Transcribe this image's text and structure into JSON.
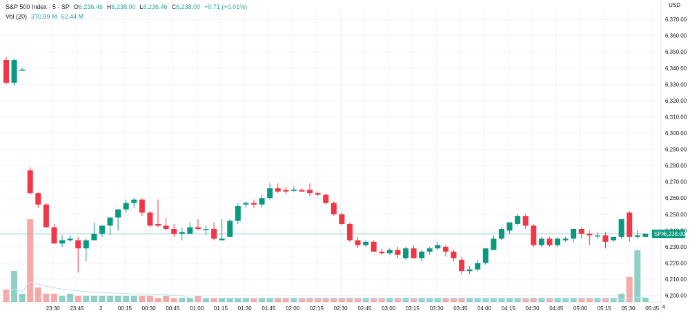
{
  "header": {
    "symbol": "S&P 500 Index · 5 · SP",
    "open_label": "O",
    "open": "6,236.46",
    "high_label": "H",
    "high": "6,238.00",
    "low_label": "L",
    "low": "6,236.46",
    "close_label": "C",
    "close": "6,238.00",
    "change": "+0.71 (+0.01%)",
    "vol_label": "Vol (20)",
    "vol_value": "370.89",
    "vol_unit": "M",
    "vol_ma": "62.44",
    "vol_ma_unit": "M"
  },
  "axis": {
    "currency": "USD",
    "last_price_symbol": "SPX",
    "last_price": "6,238.00",
    "bottom_right_digit": "4"
  },
  "colors": {
    "up": "#089981",
    "down": "#f23645",
    "vol_up": "#8ed0c7",
    "vol_down": "#f7a9a7",
    "grid": "#f0f3fa",
    "ma": "#b7dff0"
  },
  "chart_data": {
    "type": "candlestick",
    "y_ticks": [
      "6,200.00",
      "6,210.00",
      "6,220.00",
      "6,230.00",
      "6,240.00",
      "6,250.00",
      "6,260.00",
      "6,270.00",
      "6,280.00",
      "6,290.00",
      "6,300.00",
      "6,310.00",
      "6,320.00",
      "6,330.00",
      "6,340.00",
      "6,350.00",
      "6,360.00",
      "6,370.00"
    ],
    "ylim": [
      6196,
      6376
    ],
    "x_labels": [
      "23:30",
      "23:45",
      "2",
      "00:15",
      "00:30",
      "00:45",
      "01:00",
      "01:15",
      "01:30",
      "01:45",
      "02:00",
      "02:15",
      "02:30",
      "02:45",
      "03:00",
      "03:15",
      "03:30",
      "03:45",
      "04:00",
      "04:15",
      "04:30",
      "04:45",
      "05:00",
      "05:15",
      "05:30",
      "05:45"
    ],
    "candles": [
      {
        "o": 6345,
        "h": 6347,
        "l": 6330,
        "c": 6331
      },
      {
        "o": 6331,
        "h": 6346,
        "l": 6329,
        "c": 6345
      },
      {
        "o": 6339,
        "h": 6340,
        "l": 6339,
        "c": 6339
      },
      {
        "o": 6277,
        "h": 6279,
        "l": 6262,
        "c": 6263
      },
      {
        "o": 6263,
        "h": 6264,
        "l": 6254,
        "c": 6256
      },
      {
        "o": 6256,
        "h": 6257,
        "l": 6242,
        "c": 6242
      },
      {
        "o": 6242,
        "h": 6244,
        "l": 6232,
        "c": 6232
      },
      {
        "o": 6232,
        "h": 6237,
        "l": 6230,
        "c": 6234
      },
      {
        "o": 6234,
        "h": 6237,
        "l": 6233,
        "c": 6235
      },
      {
        "o": 6234,
        "h": 6236,
        "l": 6214,
        "c": 6229
      },
      {
        "o": 6229,
        "h": 6235,
        "l": 6221,
        "c": 6234
      },
      {
        "o": 6234,
        "h": 6245,
        "l": 6234,
        "c": 6238
      },
      {
        "o": 6238,
        "h": 6243,
        "l": 6236,
        "c": 6243
      },
      {
        "o": 6243,
        "h": 6247,
        "l": 6237,
        "c": 6248
      },
      {
        "o": 6248,
        "h": 6253,
        "l": 6240,
        "c": 6253
      },
      {
        "o": 6253,
        "h": 6259,
        "l": 6251,
        "c": 6257
      },
      {
        "o": 6257,
        "h": 6260,
        "l": 6254,
        "c": 6259
      },
      {
        "o": 6259,
        "h": 6260,
        "l": 6249,
        "c": 6251
      },
      {
        "o": 6251,
        "h": 6252,
        "l": 6242,
        "c": 6243
      },
      {
        "o": 6244,
        "h": 6259,
        "l": 6242,
        "c": 6243
      },
      {
        "o": 6243,
        "h": 6248,
        "l": 6240,
        "c": 6241
      },
      {
        "o": 6241,
        "h": 6244,
        "l": 6236,
        "c": 6238
      },
      {
        "o": 6238,
        "h": 6242,
        "l": 6234,
        "c": 6239
      },
      {
        "o": 6238,
        "h": 6245,
        "l": 6238,
        "c": 6242
      },
      {
        "o": 6242,
        "h": 6247,
        "l": 6240,
        "c": 6241
      },
      {
        "o": 6241,
        "h": 6243,
        "l": 6237,
        "c": 6241
      },
      {
        "o": 6241,
        "h": 6245,
        "l": 6234,
        "c": 6235
      },
      {
        "o": 6234,
        "h": 6247,
        "l": 6234,
        "c": 6235
      },
      {
        "o": 6236,
        "h": 6247,
        "l": 6236,
        "c": 6246
      },
      {
        "o": 6246,
        "h": 6257,
        "l": 6244,
        "c": 6255
      },
      {
        "o": 6256,
        "h": 6258,
        "l": 6254,
        "c": 6257
      },
      {
        "o": 6257,
        "h": 6259,
        "l": 6254,
        "c": 6256
      },
      {
        "o": 6256,
        "h": 6262,
        "l": 6254,
        "c": 6260
      },
      {
        "o": 6260,
        "h": 6269,
        "l": 6259,
        "c": 6266
      },
      {
        "o": 6266,
        "h": 6269,
        "l": 6263,
        "c": 6264
      },
      {
        "o": 6265,
        "h": 6267,
        "l": 6262,
        "c": 6264
      },
      {
        "o": 6265,
        "h": 6267,
        "l": 6264,
        "c": 6265
      },
      {
        "o": 6265,
        "h": 6266,
        "l": 6264,
        "c": 6264
      },
      {
        "o": 6265,
        "h": 6269,
        "l": 6261,
        "c": 6263
      },
      {
        "o": 6263,
        "h": 6264,
        "l": 6261,
        "c": 6262
      },
      {
        "o": 6262,
        "h": 6263,
        "l": 6256,
        "c": 6257
      },
      {
        "o": 6257,
        "h": 6258,
        "l": 6249,
        "c": 6250
      },
      {
        "o": 6250,
        "h": 6251,
        "l": 6243,
        "c": 6244
      },
      {
        "o": 6244,
        "h": 6245,
        "l": 6233,
        "c": 6234
      },
      {
        "o": 6234,
        "h": 6236,
        "l": 6229,
        "c": 6231
      },
      {
        "o": 6231,
        "h": 6234,
        "l": 6230,
        "c": 6233
      },
      {
        "o": 6233,
        "h": 6234,
        "l": 6227,
        "c": 6227
      },
      {
        "o": 6227,
        "h": 6229,
        "l": 6225,
        "c": 6226
      },
      {
        "o": 6226,
        "h": 6229,
        "l": 6225,
        "c": 6228
      },
      {
        "o": 6228,
        "h": 6230,
        "l": 6223,
        "c": 6225
      },
      {
        "o": 6223,
        "h": 6230,
        "l": 6222,
        "c": 6229
      },
      {
        "o": 6229,
        "h": 6231,
        "l": 6223,
        "c": 6223
      },
      {
        "o": 6223,
        "h": 6228,
        "l": 6221,
        "c": 6227
      },
      {
        "o": 6227,
        "h": 6230,
        "l": 6225,
        "c": 6229
      },
      {
        "o": 6229,
        "h": 6233,
        "l": 6228,
        "c": 6231
      },
      {
        "o": 6230,
        "h": 6231,
        "l": 6224,
        "c": 6227
      },
      {
        "o": 6227,
        "h": 6228,
        "l": 6221,
        "c": 6223
      },
      {
        "o": 6222,
        "h": 6224,
        "l": 6213,
        "c": 6215
      },
      {
        "o": 6215,
        "h": 6218,
        "l": 6213,
        "c": 6216
      },
      {
        "o": 6216,
        "h": 6222,
        "l": 6215,
        "c": 6220
      },
      {
        "o": 6220,
        "h": 6229,
        "l": 6219,
        "c": 6229
      },
      {
        "o": 6228,
        "h": 6237,
        "l": 6228,
        "c": 6235
      },
      {
        "o": 6235,
        "h": 6242,
        "l": 6234,
        "c": 6241
      },
      {
        "o": 6240,
        "h": 6245,
        "l": 6238,
        "c": 6245
      },
      {
        "o": 6244,
        "h": 6250,
        "l": 6243,
        "c": 6249
      },
      {
        "o": 6249,
        "h": 6250,
        "l": 6241,
        "c": 6243
      },
      {
        "o": 6243,
        "h": 6244,
        "l": 6230,
        "c": 6231
      },
      {
        "o": 6231,
        "h": 6236,
        "l": 6230,
        "c": 6235
      },
      {
        "o": 6235,
        "h": 6236,
        "l": 6230,
        "c": 6231
      },
      {
        "o": 6231,
        "h": 6236,
        "l": 6230,
        "c": 6235
      },
      {
        "o": 6234,
        "h": 6236,
        "l": 6233,
        "c": 6235
      },
      {
        "o": 6235,
        "h": 6241,
        "l": 6233,
        "c": 6241
      },
      {
        "o": 6241,
        "h": 6242,
        "l": 6235,
        "c": 6238
      },
      {
        "o": 6238,
        "h": 6240,
        "l": 6231,
        "c": 6237
      },
      {
        "o": 6237,
        "h": 6239,
        "l": 6235,
        "c": 6237
      },
      {
        "o": 6237,
        "h": 6239,
        "l": 6229,
        "c": 6233
      },
      {
        "o": 6234,
        "h": 6236,
        "l": 6233,
        "c": 6236
      },
      {
        "o": 6236,
        "h": 6247,
        "l": 6235,
        "c": 6247
      },
      {
        "o": 6251,
        "h": 6252,
        "l": 6233,
        "c": 6236
      },
      {
        "o": 6236,
        "h": 6240,
        "l": 6235,
        "c": 6237
      },
      {
        "o": 6236,
        "h": 6238,
        "l": 6236,
        "c": 6238
      }
    ],
    "volumes": [
      0.06,
      0.15,
      0.04,
      0.4,
      0.07,
      0.04,
      0.04,
      0.03,
      0.04,
      0.03,
      0.03,
      0.03,
      0.03,
      0.03,
      0.03,
      0.03,
      0.03,
      0.03,
      0.03,
      0.02,
      0.03,
      0.02,
      0.02,
      0.02,
      0.03,
      0.02,
      0.02,
      0.02,
      0.02,
      0.02,
      0.02,
      0.02,
      0.02,
      0.02,
      0.02,
      0.02,
      0.02,
      0.02,
      0.02,
      0.02,
      0.02,
      0.02,
      0.02,
      0.02,
      0.02,
      0.02,
      0.02,
      0.02,
      0.02,
      0.02,
      0.02,
      0.02,
      0.02,
      0.02,
      0.02,
      0.02,
      0.02,
      0.02,
      0.02,
      0.02,
      0.02,
      0.02,
      0.02,
      0.02,
      0.02,
      0.02,
      0.02,
      0.02,
      0.02,
      0.02,
      0.02,
      0.02,
      0.02,
      0.02,
      0.02,
      0.02,
      0.02,
      0.04,
      0.12,
      0.25,
      0.02
    ]
  }
}
